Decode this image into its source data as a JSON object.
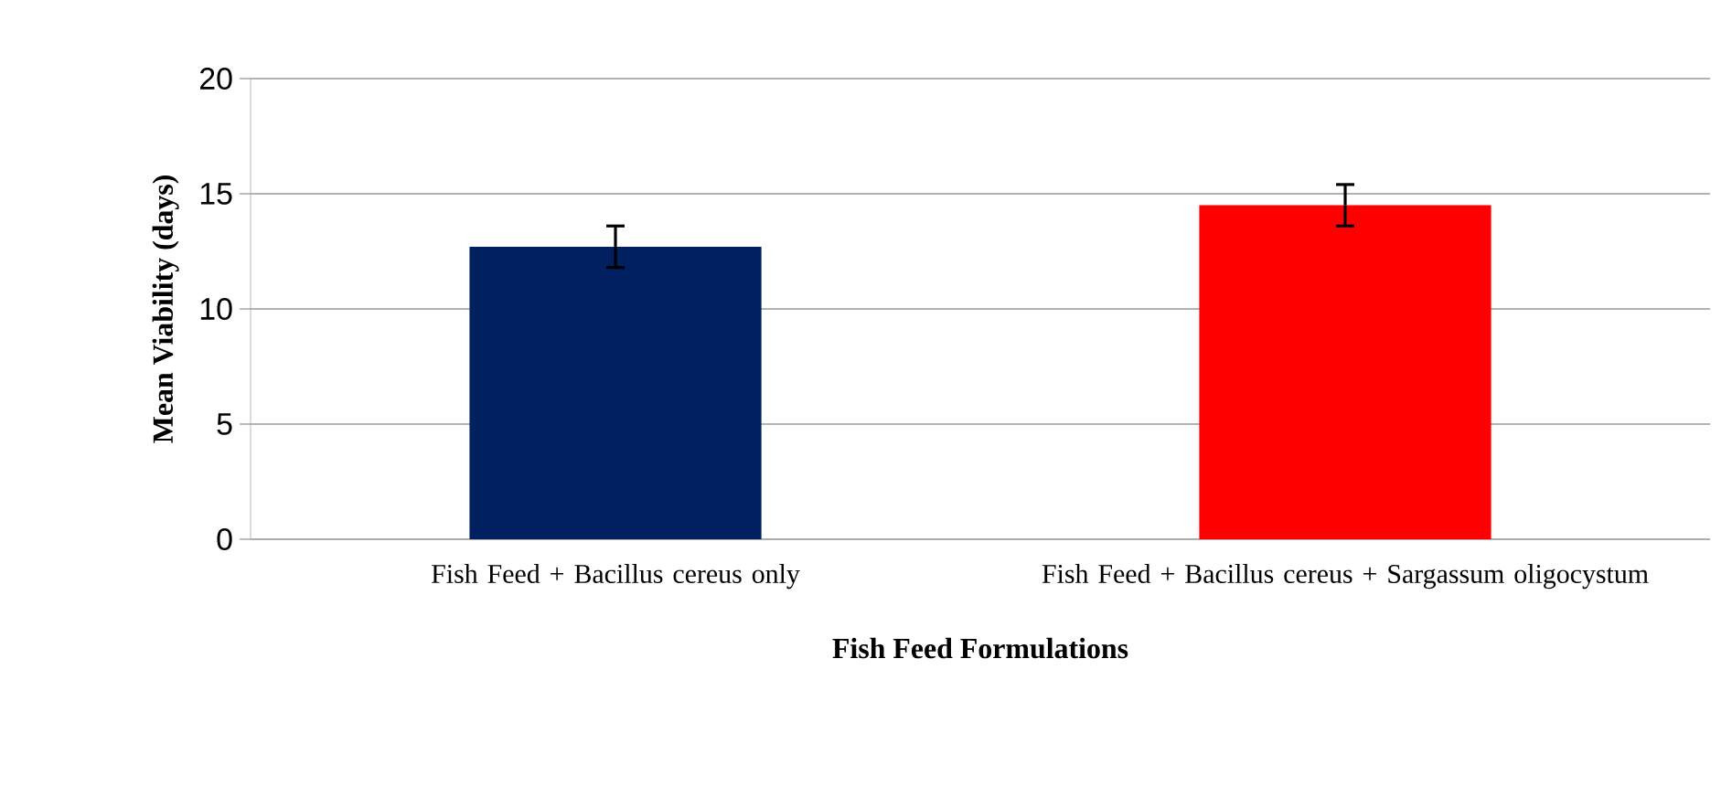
{
  "chart_data": {
    "type": "bar",
    "xlabel": "Fish Feed Formulations",
    "ylabel": "Mean Viability (days)",
    "categories": [
      "Fish Feed + Bacillus cereus only",
      "Fish Feed + Bacillus cereus + Sargassum oligocystum"
    ],
    "values": [
      12.7,
      14.5
    ],
    "errors": [
      0.9,
      0.9
    ],
    "colors": [
      "#002060",
      "#ff0000"
    ],
    "ylim": [
      0,
      20
    ],
    "yticks": [
      0,
      5,
      10,
      15,
      20
    ],
    "grid": "y"
  }
}
